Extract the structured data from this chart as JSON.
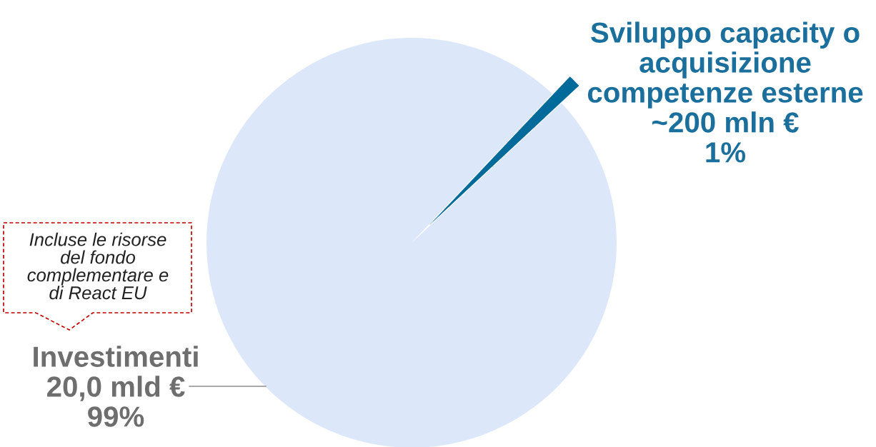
{
  "chart_data": {
    "type": "pie",
    "categories": [
      "Sviluppo capacity o\nacquisizione\ncompetenze esterne\n~200 mln €",
      "Investimenti\n20,0 mld €"
    ],
    "values": [
      1,
      99
    ],
    "colors": [
      "#006a9a",
      "#dce8fa"
    ],
    "value_labels": [
      "1%",
      "99%"
    ],
    "legend": false,
    "annotations": [
      "Incluse le risorse\ndel fondo\ncomplementare e\ndi React EU"
    ]
  }
}
